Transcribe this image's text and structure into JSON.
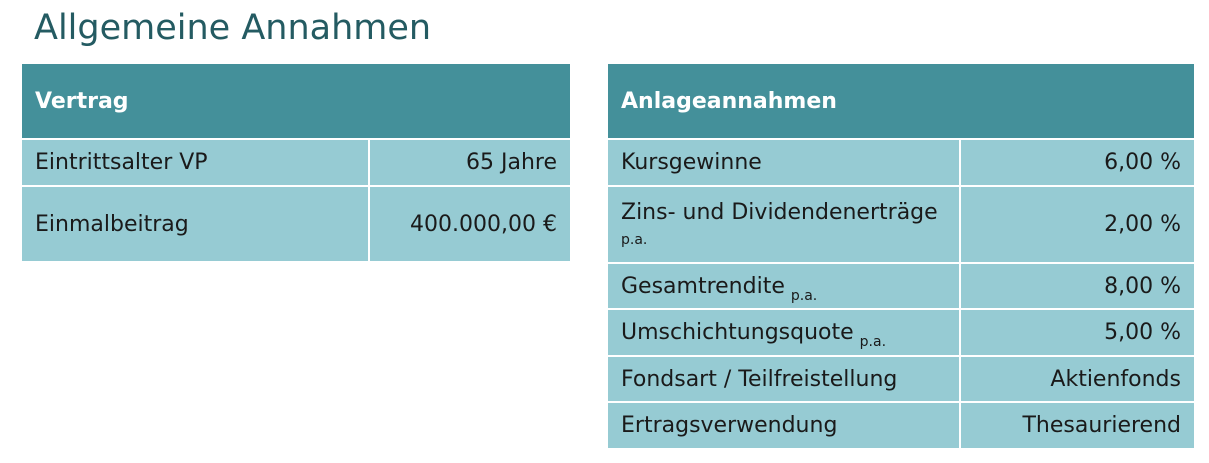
{
  "header": {
    "title": "Allgemeine Annahmen"
  },
  "tables": [
    {
      "title": "Vertrag",
      "rows": [
        {
          "label": "Eintrittsalter VP",
          "value": "65 Jahre"
        },
        {
          "label": "Einmalbeitrag",
          "value": "400.000,00 €"
        }
      ]
    },
    {
      "title": "Anlageannahmen",
      "rows": [
        {
          "label": "Kursgewinne",
          "value": "6,00 %"
        },
        {
          "label": "Zins- und Dividendenerträge",
          "sub": "p.a.",
          "value": "2,00 %"
        },
        {
          "label": "Gesamtrendite",
          "sub": "p.a.",
          "value": "8,00 %"
        },
        {
          "label": "Umschichtungsquote",
          "sub": "p.a.",
          "value": "5,00 %"
        },
        {
          "label": "Fondsart / Teilfreistellung",
          "value": "Aktienfonds"
        },
        {
          "label": "Ertragsverwendung",
          "value": "Thesaurierend"
        }
      ]
    }
  ]
}
